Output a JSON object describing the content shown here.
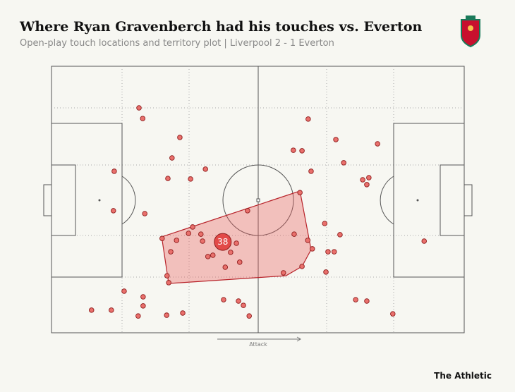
{
  "chart_data": {
    "type": "scatter",
    "title": "Where Ryan Gravenberch had his touches vs. Everton",
    "subtitle": "Open-play touch locations and territory plot |  Liverpool 2 - 1 Everton",
    "direction_label": "Attack",
    "credit": "The Athletic",
    "xlim": [
      0,
      100
    ],
    "ylim": [
      0,
      100
    ],
    "color": "#e9706c",
    "x": [
      21.2,
      22.1,
      62.2,
      31.1,
      68.9,
      79.0,
      58.6,
      60.7,
      29.2,
      70.8,
      15.2,
      37.3,
      33.7,
      28.2,
      62.9,
      75.4,
      76.9,
      76.4,
      60.2,
      15.0,
      22.6,
      47.5,
      66.2,
      34.2,
      26.8,
      33.2,
      36.2,
      30.3,
      36.6,
      44.8,
      42.9,
      58.8,
      62.1,
      69.9,
      90.3,
      28.9,
      39.1,
      43.4,
      63.2,
      67.0,
      68.5,
      37.9,
      45.6,
      42.1,
      60.7,
      28.0,
      56.2,
      66.5,
      28.4,
      17.6,
      22.2,
      41.7,
      45.3,
      73.7,
      76.4,
      22.2,
      46.5,
      9.7,
      14.5,
      31.8,
      27.9,
      21.0,
      47.9,
      82.7
    ],
    "y": [
      15.6,
      19.6,
      19.8,
      26.7,
      27.5,
      29.1,
      31.5,
      31.7,
      34.4,
      36.2,
      39.4,
      38.6,
      42.3,
      42.1,
      39.4,
      42.6,
      41.8,
      44.4,
      47.4,
      54.2,
      55.3,
      54.2,
      59.0,
      60.3,
      64.6,
      62.7,
      63.0,
      65.3,
      65.6,
      66.4,
      66.7,
      63.0,
      65.3,
      63.2,
      65.6,
      69.6,
      70.9,
      69.8,
      68.5,
      69.6,
      69.6,
      71.4,
      73.5,
      75.4,
      75.1,
      78.6,
      77.5,
      77.2,
      81.2,
      84.4,
      86.5,
      87.6,
      88.1,
      87.6,
      88.1,
      89.9,
      89.7,
      91.5,
      91.5,
      92.6,
      93.4,
      93.7,
      93.7,
      92.9
    ],
    "territory": {
      "x": [
        26.7,
        60.2,
        62.9,
        60.7,
        56.8,
        28.4
      ],
      "y": [
        64.0,
        46.8,
        68.8,
        75.1,
        78.6,
        81.5
      ]
    },
    "average": {
      "x": 41.5,
      "y": 65.9,
      "touches": 38
    }
  }
}
